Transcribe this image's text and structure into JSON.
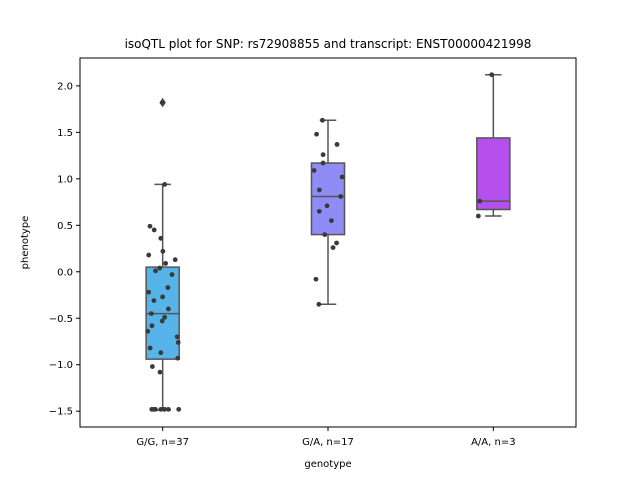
{
  "chart_data": {
    "type": "box",
    "title": "isoQTL plot for SNP: rs72908855 and transcript: ENST00000421998",
    "xlabel": "genotype",
    "ylabel": "phenotype",
    "ylim": [
      -1.67,
      2.3
    ],
    "yticks": [
      -1.5,
      -1.0,
      -0.5,
      0.0,
      0.5,
      1.0,
      1.5,
      2.0
    ],
    "ytick_labels": [
      "−1.5",
      "−1.0",
      "−0.5",
      "0.0",
      "0.5",
      "1.0",
      "1.5",
      "2.0"
    ],
    "grid": false,
    "categories": [
      "G/G, n=37",
      "G/A, n=17",
      "A/A, n=3"
    ],
    "colors": {
      "G/G": "#56b4e9",
      "G/A": "#8f8cf5",
      "A/A": "#b650ec",
      "edge": "#555555",
      "point": "#3a3a3a"
    },
    "boxes": [
      {
        "category": "G/G, n=37",
        "q1": -0.94,
        "median": -0.45,
        "q3": 0.05,
        "whisker_low": -1.49,
        "whisker_high": 0.94,
        "outliers": [
          1.82
        ],
        "points": [
          1.82,
          0.94,
          0.49,
          0.45,
          0.36,
          0.22,
          0.18,
          0.13,
          0.09,
          0.04,
          0.01,
          -0.03,
          -0.17,
          -0.22,
          -0.27,
          -0.31,
          -0.4,
          -0.45,
          -0.49,
          -0.53,
          -0.58,
          -0.64,
          -0.7,
          -0.76,
          -0.82,
          -0.87,
          -0.93,
          -1.02,
          -1.08,
          -1.48,
          -1.48,
          -1.48,
          -1.48,
          -1.48,
          -1.48,
          -1.48,
          -1.48
        ]
      },
      {
        "category": "G/A, n=17",
        "q1": 0.4,
        "median": 0.81,
        "q3": 1.17,
        "whisker_low": -0.35,
        "whisker_high": 1.63,
        "outliers": [],
        "points": [
          1.63,
          1.48,
          1.37,
          1.26,
          1.17,
          1.09,
          1.02,
          0.88,
          0.81,
          0.71,
          0.65,
          0.55,
          0.4,
          0.31,
          0.26,
          -0.08,
          -0.35
        ]
      },
      {
        "category": "A/A, n=3",
        "q1": 0.67,
        "median": 0.76,
        "q3": 1.44,
        "whisker_low": 0.6,
        "whisker_high": 2.12,
        "outliers": [],
        "points": [
          2.12,
          0.76,
          0.6
        ]
      }
    ]
  }
}
